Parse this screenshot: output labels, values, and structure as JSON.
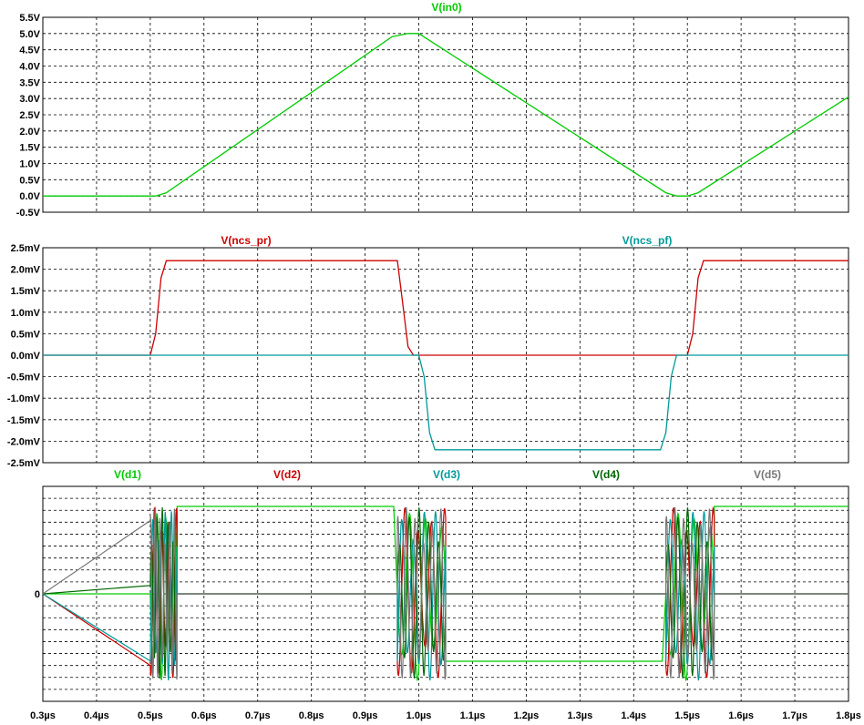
{
  "chart_data": [
    {
      "type": "line",
      "title": "V(in0)",
      "ylim": [
        -0.5,
        5.5
      ],
      "yticks": [
        "-0.5V",
        "0.0V",
        "0.5V",
        "1.0V",
        "1.5V",
        "2.0V",
        "2.5V",
        "3.0V",
        "3.5V",
        "4.0V",
        "4.5V",
        "5.0V",
        "5.5V"
      ],
      "ytick_values": [
        -0.5,
        0,
        0.5,
        1,
        1.5,
        2,
        2.5,
        3,
        3.5,
        4,
        4.5,
        5,
        5.5
      ],
      "grid": true,
      "series": [
        {
          "name": "V(in0)",
          "color": "#00cc00",
          "x": [
            0.3,
            0.51,
            0.53,
            0.95,
            0.98,
            1.0,
            1.46,
            1.48,
            1.5,
            1.52,
            1.8
          ],
          "y": [
            0,
            0,
            0.1,
            4.9,
            5.0,
            5.0,
            0.1,
            0.0,
            0.0,
            0.1,
            3.05
          ]
        }
      ]
    },
    {
      "type": "line",
      "title": "",
      "ylim": [
        -2.5,
        2.5
      ],
      "yticks": [
        "-2.5mV",
        "-2.0mV",
        "-1.5mV",
        "-1.0mV",
        "-0.5mV",
        "0.0mV",
        "0.5mV",
        "1.0mV",
        "1.5mV",
        "2.0mV",
        "2.5mV"
      ],
      "ytick_values": [
        -2.5,
        -2,
        -1.5,
        -1,
        -0.5,
        0,
        0.5,
        1,
        1.5,
        2,
        2.5
      ],
      "grid": true,
      "series": [
        {
          "name": "V(ncs_pr)",
          "color": "#cc0000",
          "x": [
            0.3,
            0.5,
            0.51,
            0.52,
            0.53,
            0.9,
            0.96,
            0.97,
            0.98,
            0.99,
            1.5,
            1.51,
            1.52,
            1.53,
            1.8
          ],
          "y": [
            0,
            0,
            0.5,
            1.8,
            2.2,
            2.2,
            2.2,
            1.2,
            0.2,
            0,
            0,
            0.5,
            1.8,
            2.2,
            2.2
          ]
        },
        {
          "name": "V(ncs_pf)",
          "color": "#00999a",
          "x": [
            0.3,
            1.0,
            1.01,
            1.02,
            1.03,
            1.45,
            1.46,
            1.47,
            1.48,
            1.8
          ],
          "y": [
            0,
            0,
            -0.5,
            -1.8,
            -2.2,
            -2.2,
            -1.8,
            -0.5,
            0,
            0
          ]
        }
      ]
    },
    {
      "type": "line",
      "title": "",
      "ylim": [
        -1,
        1
      ],
      "yticks": [
        "0"
      ],
      "ytick_values": [
        0
      ],
      "grid": true,
      "series": [
        {
          "name": "V(d1)",
          "color": "#00cc00"
        },
        {
          "name": "V(d2)",
          "color": "#cc0000"
        },
        {
          "name": "V(d3)",
          "color": "#00999a"
        },
        {
          "name": "V(d4)",
          "color": "#006600"
        },
        {
          "name": "V(d5)",
          "color": "#777777"
        }
      ],
      "bursts": [
        [
          0.5,
          0.55
        ],
        [
          0.96,
          1.05
        ],
        [
          1.46,
          1.55
        ]
      ]
    }
  ],
  "xaxis": {
    "ticks": [
      "0.3µs",
      "0.4µs",
      "0.5µs",
      "0.6µs",
      "0.7µs",
      "0.8µs",
      "0.9µs",
      "1.0µs",
      "1.1µs",
      "1.2µs",
      "1.3µs",
      "1.4µs",
      "1.5µs",
      "1.6µs",
      "1.7µs",
      "1.8µs"
    ],
    "tick_values": [
      0.3,
      0.4,
      0.5,
      0.6,
      0.7,
      0.8,
      0.9,
      1.0,
      1.1,
      1.2,
      1.3,
      1.4,
      1.5,
      1.6,
      1.7,
      1.8
    ],
    "xlim": [
      0.3,
      1.8
    ]
  }
}
